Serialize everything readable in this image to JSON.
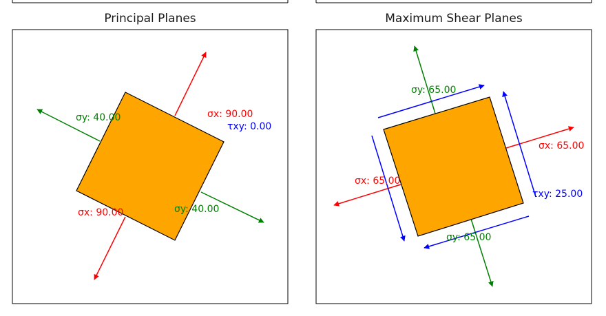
{
  "colors": {
    "normal_x": "#ff0000",
    "normal_y": "#008000",
    "shear": "#0000ff",
    "element": "#ffa500",
    "frame": "#000000"
  },
  "panels": [
    {
      "title": "Principal Planes",
      "labels": {
        "sx_upper": "σx: 90.00",
        "sx_lower": "σx: 90.00",
        "sy_left": "σy: 40.00",
        "sy_right": "σy: 40.00",
        "txy": "τxy: 0.00"
      }
    },
    {
      "title": "Maximum Shear Planes",
      "labels": {
        "sy_top": "σy: 65.00",
        "sy_bottom": "σy: 65.00",
        "sx_right": "σx: 65.00",
        "sx_left": "σx: 65.00",
        "txy": "τxy: 25.00"
      }
    }
  ]
}
